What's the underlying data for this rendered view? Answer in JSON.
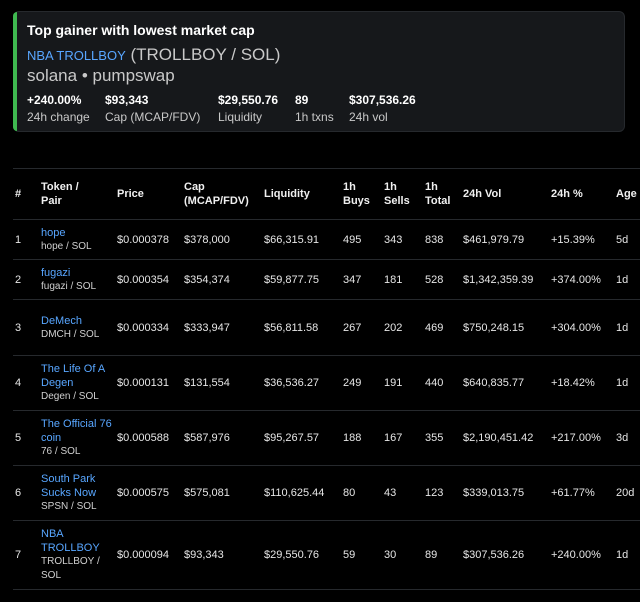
{
  "summary": {
    "title": "Top gainer with lowest market cap",
    "token_name": "NBA TROLLBOY",
    "token_pair": "(TROLLBOY / SOL)",
    "chain_line": "solana • pumpswap",
    "accent_color": "#3fb950",
    "stats": [
      {
        "value": "+240.00%",
        "label": "24h change"
      },
      {
        "value": "$93,343",
        "label": "Cap (MCAP/FDV)"
      },
      {
        "value": "$29,550.76",
        "label": "Liquidity"
      },
      {
        "value": "89",
        "label": "1h txns"
      },
      {
        "value": "$307,536.26",
        "label": "24h vol"
      }
    ]
  },
  "table": {
    "headers": {
      "num": "#",
      "token_l1": "Token /",
      "token_l2": "Pair",
      "price": "Price",
      "cap_l1": "Cap",
      "cap_l2": "(MCAP/FDV)",
      "liq": "Liquidity",
      "buys_l1": "1h",
      "buys_l2": "Buys",
      "sells_l1": "1h",
      "sells_l2": "Sells",
      "total_l1": "1h",
      "total_l2": "Total",
      "vol": "24h Vol",
      "chg": "24h %",
      "age": "Age"
    },
    "rows": [
      {
        "num": "1",
        "name": "hope",
        "pair": "hope / SOL",
        "price": "$0.000378",
        "cap": "$378,000",
        "liq": "$66,315.91",
        "buys": "495",
        "sells": "343",
        "total": "838",
        "vol": "$461,979.79",
        "chg": "+15.39%",
        "age": "5d"
      },
      {
        "num": "2",
        "name": "fugazi",
        "pair": "fugazi / SOL",
        "price": "$0.000354",
        "cap": "$354,374",
        "liq": "$59,877.75",
        "buys": "347",
        "sells": "181",
        "total": "528",
        "vol": "$1,342,359.39",
        "chg": "+374.00%",
        "age": "1d"
      },
      {
        "num": "3",
        "name": "DeMech",
        "pair": "DMCH / SOL",
        "price": "$0.000334",
        "cap": "$333,947",
        "liq": "$56,811.58",
        "buys": "267",
        "sells": "202",
        "total": "469",
        "vol": "$750,248.15",
        "chg": "+304.00%",
        "age": "1d"
      },
      {
        "num": "4",
        "name": "The Life Of A Degen",
        "pair": "Degen / SOL",
        "price": "$0.000131",
        "cap": "$131,554",
        "liq": "$36,536.27",
        "buys": "249",
        "sells": "191",
        "total": "440",
        "vol": "$640,835.77",
        "chg": "+18.42%",
        "age": "1d"
      },
      {
        "num": "5",
        "name": "The Official 76 coin",
        "pair": "76 / SOL",
        "price": "$0.000588",
        "cap": "$587,976",
        "liq": "$95,267.57",
        "buys": "188",
        "sells": "167",
        "total": "355",
        "vol": "$2,190,451.42",
        "chg": "+217.00%",
        "age": "3d"
      },
      {
        "num": "6",
        "name": "South Park Sucks Now",
        "pair": "SPSN / SOL",
        "price": "$0.000575",
        "cap": "$575,081",
        "liq": "$110,625.44",
        "buys": "80",
        "sells": "43",
        "total": "123",
        "vol": "$339,013.75",
        "chg": "+61.77%",
        "age": "20d"
      },
      {
        "num": "7",
        "name": "NBA TROLLBOY",
        "pair": "TROLLBOY / SOL",
        "price": "$0.000094",
        "cap": "$93,343",
        "liq": "$29,550.76",
        "buys": "59",
        "sells": "30",
        "total": "89",
        "vol": "$307,536.26",
        "chg": "+240.00%",
        "age": "1d"
      }
    ]
  }
}
